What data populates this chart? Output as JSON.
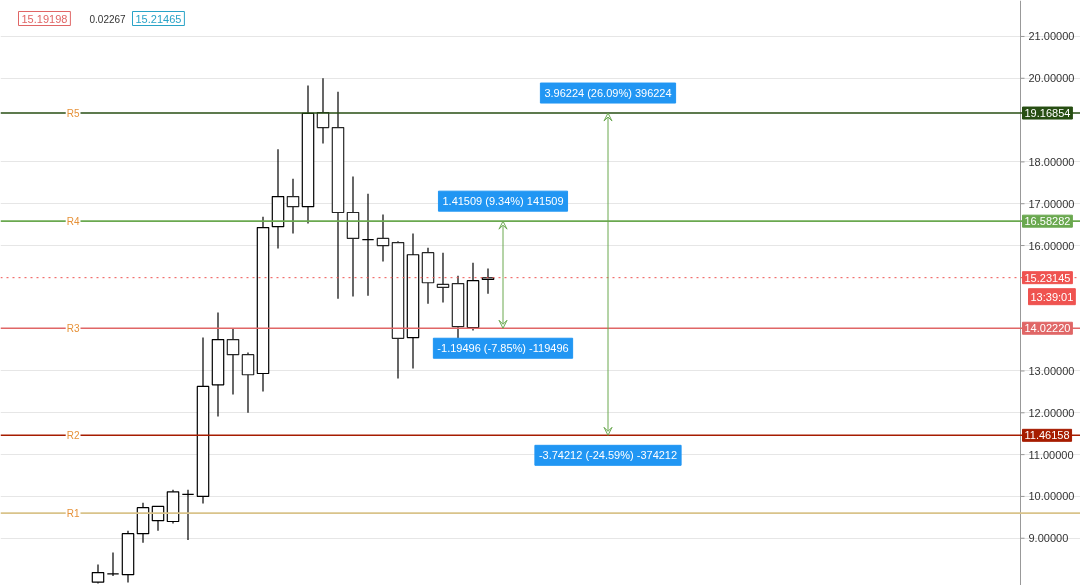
{
  "chart_data": {
    "type": "candlestick",
    "categories": [
      null,
      null,
      null,
      null,
      null,
      null,
      null,
      null,
      null,
      null,
      null,
      null,
      null,
      null,
      null,
      null,
      null,
      null,
      null,
      null,
      null,
      null,
      null,
      null,
      null,
      null,
      null,
      null,
      null,
      null,
      null,
      null,
      null,
      null,
      null,
      null,
      null,
      null,
      null,
      null,
      null,
      null,
      null,
      null,
      null,
      null,
      null,
      null,
      null,
      null,
      null,
      null,
      null,
      null,
      null,
      null,
      null,
      null,
      null,
      null,
      null,
      null,
      null,
      null,
      null,
      null,
      null,
      null,
      null,
      null,
      null,
      null
    ],
    "ohlc": [
      null,
      null,
      null,
      null,
      null,
      null,
      [
        7.95,
        8.37,
        7.92,
        8.18
      ],
      [
        8.15,
        8.66,
        8.1,
        8.15
      ],
      [
        8.13,
        9.18,
        7.94,
        9.11
      ],
      [
        9.11,
        9.85,
        8.89,
        9.73
      ],
      [
        9.42,
        9.76,
        9.18,
        9.76
      ],
      [
        9.4,
        10.16,
        9.35,
        10.11
      ],
      [
        10.05,
        10.16,
        8.96,
        10.05
      ],
      [
        10.0,
        13.8,
        9.83,
        12.63
      ],
      [
        12.67,
        14.4,
        11.91,
        13.75
      ],
      [
        13.75,
        14.01,
        12.44,
        13.39
      ],
      [
        13.39,
        13.44,
        12.0,
        12.91
      ],
      [
        12.94,
        16.69,
        12.51,
        16.43
      ],
      [
        16.45,
        18.3,
        15.93,
        17.17
      ],
      [
        17.17,
        17.6,
        16.29,
        16.93
      ],
      [
        16.93,
        19.83,
        16.53,
        19.16
      ],
      [
        19.18,
        20.0,
        18.44,
        18.82
      ],
      [
        18.82,
        19.68,
        14.73,
        16.79
      ],
      [
        16.79,
        17.65,
        14.78,
        16.17
      ],
      [
        16.14,
        17.24,
        14.8,
        16.14
      ],
      [
        16.17,
        16.74,
        15.62,
        16.0
      ],
      [
        16.07,
        16.1,
        12.82,
        13.78
      ],
      [
        13.8,
        16.29,
        13.06,
        15.78
      ],
      [
        15.83,
        15.95,
        14.61,
        15.11
      ],
      [
        15.07,
        15.83,
        14.64,
        15.0
      ],
      [
        15.09,
        15.28,
        13.78,
        14.06
      ],
      [
        14.04,
        15.59,
        13.97,
        15.16
      ],
      [
        15.19,
        15.45,
        14.85,
        15.23
      ],
      null,
      null,
      null,
      null,
      null,
      null,
      null,
      null,
      null,
      null,
      null,
      null,
      null,
      null,
      null,
      null,
      null,
      null,
      null,
      null,
      null,
      null,
      null,
      null,
      null,
      null,
      null,
      null,
      null,
      null,
      null,
      null,
      null,
      null,
      null,
      null,
      null,
      null,
      null
    ],
    "ylim": [
      7.87,
      21.86
    ],
    "yticks": [
      {
        "value": 9,
        "label": "9.00000"
      },
      {
        "value": 10,
        "label": "10.00000"
      },
      {
        "value": 11,
        "label": "11.00000"
      },
      {
        "value": 12,
        "label": "12.00000"
      },
      {
        "value": 13,
        "label": "13.00000"
      },
      {
        "value": 16,
        "label": "16.00000"
      },
      {
        "value": 17,
        "label": "17.00000"
      },
      {
        "value": 18,
        "label": "18.00000"
      },
      {
        "value": 20,
        "label": "20.00000"
      },
      {
        "value": 21,
        "label": "21.00000"
      },
      {
        "value": 19.16854,
        "label": "19.16854"
      },
      {
        "value": 16.58282,
        "label": "16.58282"
      },
      {
        "value": 15.23145,
        "label": "15.23145"
      },
      {
        "value": 14.0222,
        "label": "14.02220"
      },
      {
        "value": 11.46158,
        "label": "11.46158"
      }
    ],
    "ref_lines": [
      {
        "axis": "y",
        "value": 19.16854,
        "label": "R5",
        "color": "#274e13"
      },
      {
        "axis": "y",
        "value": 16.58282,
        "label": "R4",
        "color": "#6aa84f"
      },
      {
        "axis": "y",
        "value": 14.0222,
        "label": "R3",
        "color": "#e06666"
      },
      {
        "axis": "y",
        "value": 11.46158,
        "label": "R2",
        "color": "#a61c00"
      },
      {
        "axis": "y",
        "value": 9.6,
        "label": "R1",
        "color": "#d9c38a"
      },
      {
        "axis": "y",
        "value": 15.23145,
        "label": null,
        "color": "#ef5350",
        "line_style": "dotted"
      }
    ],
    "annotations": [
      {
        "text": "1.41509 (9.34%) 141509",
        "y": 16.58282
      },
      {
        "text": "-1.19496 (-7.85%) -119496",
        "y": 14.0222
      },
      {
        "text": "3.96224 (26.09%) 396224",
        "y": 19.16854
      },
      {
        "text": "-3.74212 (-24.59%) -374212",
        "y": 11.46158
      },
      "13:39:01",
      "15.19198",
      "0.02267",
      "15.21465"
    ],
    "grid": "y",
    "tick_labels": "y"
  }
}
